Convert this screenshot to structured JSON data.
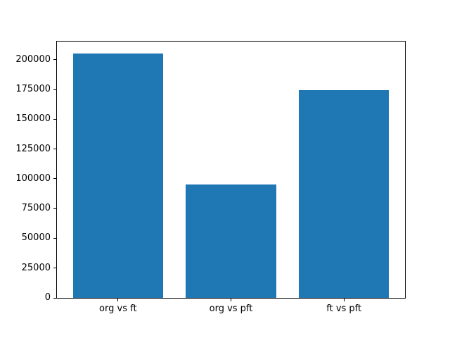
{
  "figure": {
    "background": "#ffffff"
  },
  "chart_data": {
    "type": "bar",
    "title": "",
    "xlabel": "",
    "ylabel": "",
    "categories": [
      "org vs ft",
      "org vs pft",
      "ft vs pft"
    ],
    "values": [
      205000,
      95000,
      174500
    ],
    "bar_color": "#1f77b4",
    "yticks": [
      0,
      25000,
      50000,
      75000,
      100000,
      125000,
      150000,
      175000,
      200000
    ],
    "ylim": [
      0,
      215250
    ],
    "xlim": [
      -0.54,
      2.54
    ],
    "bar_width": 0.8,
    "grid": false,
    "legend": null
  }
}
